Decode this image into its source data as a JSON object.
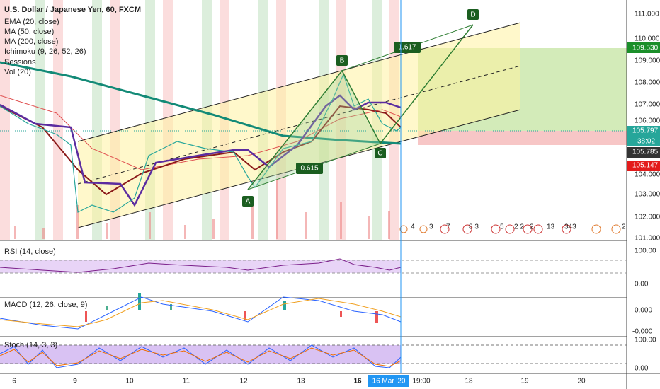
{
  "header": {
    "symbol": "U.S. Dollar / Japanese Yen, 60, FXCM",
    "indicators": [
      "EMA (20, close)",
      "MA (50, close)",
      "MA (200, close)",
      "Ichimoku (9, 26, 52, 26)",
      "Sessions",
      "Vol (20)"
    ]
  },
  "price_axis": [
    "111.000",
    "110.000",
    "109.000",
    "108.000",
    "107.000",
    "106.000",
    "104.000",
    "103.000",
    "102.000",
    "101.000"
  ],
  "price_tags": {
    "target": "109.530",
    "last": "105.797",
    "countdown": "38:02",
    "cursor": "105.785",
    "stop": "105.147"
  },
  "pattern": {
    "points": [
      "A",
      "B",
      "C",
      "D"
    ],
    "ratios": [
      "1.617",
      "0.615"
    ]
  },
  "events": [
    "4",
    "3",
    "7",
    "8 3",
    "5",
    "2 2",
    "2",
    "13",
    "343",
    "2"
  ],
  "rsi": {
    "title": "RSI (14, close)",
    "ticks": [
      "100.00",
      "0.00"
    ]
  },
  "macd": {
    "title": "MACD (12, 26, close, 9)",
    "ticks": [
      "0.000",
      "-0.000"
    ]
  },
  "stoch": {
    "title": "Stoch (14, 3, 3)",
    "ticks": [
      "100.00",
      "0.00"
    ]
  },
  "time_axis": {
    "labels": [
      "6",
      "9",
      "10",
      "11",
      "12",
      "13",
      "16",
      "18",
      "19",
      "20"
    ],
    "cursor_date": "16 Mar '20",
    "cursor_time": "19:00"
  }
}
